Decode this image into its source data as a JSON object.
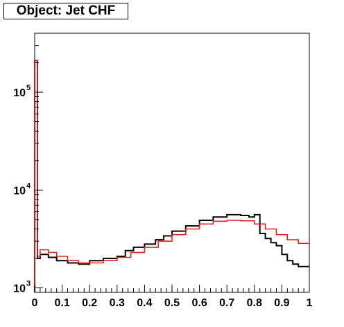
{
  "chart_data": {
    "type": "histogram",
    "title": "Object: Jet CHF",
    "xlabel": "",
    "ylabel": "",
    "xlim": [
      0,
      1
    ],
    "ylim": [
      900,
      400000
    ],
    "y_scale": "log",
    "grid": false,
    "legend": "none",
    "x_ticks": [
      {
        "value": 0,
        "label": "0"
      },
      {
        "value": 0.1,
        "label": "0.1"
      },
      {
        "value": 0.2,
        "label": "0.2"
      },
      {
        "value": 0.3,
        "label": "0.3"
      },
      {
        "value": 0.4,
        "label": "0.4"
      },
      {
        "value": 0.5,
        "label": "0.5"
      },
      {
        "value": 0.6,
        "label": "0.6"
      },
      {
        "value": 0.7,
        "label": "0.7"
      },
      {
        "value": 0.8,
        "label": "0.8"
      },
      {
        "value": 0.9,
        "label": "0.9"
      },
      {
        "value": 1,
        "label": "1"
      }
    ],
    "y_ticks": [
      {
        "value": 1000,
        "base": "10",
        "exp": "3"
      },
      {
        "value": 10000,
        "base": "10",
        "exp": "4"
      },
      {
        "value": 100000,
        "base": "10",
        "exp": "5"
      }
    ],
    "series": [
      {
        "color": "#000000",
        "bin_edges": [
          0,
          0.01,
          0.02,
          0.05,
          0.08,
          0.12,
          0.16,
          0.2,
          0.25,
          0.3,
          0.33,
          0.36,
          0.4,
          0.44,
          0.47,
          0.5,
          0.55,
          0.6,
          0.65,
          0.7,
          0.75,
          0.78,
          0.8,
          0.82,
          0.84,
          0.86,
          0.88,
          0.9,
          0.92,
          0.94,
          0.96,
          1.0
        ],
        "values": [
          210000,
          2000,
          2200,
          2050,
          1900,
          1800,
          1750,
          1900,
          2000,
          2100,
          2400,
          2600,
          2800,
          3100,
          3400,
          3800,
          4300,
          4900,
          5300,
          5600,
          5500,
          5300,
          5600,
          3600,
          3200,
          2900,
          2700,
          2200,
          1900,
          1750,
          1650
        ]
      },
      {
        "color": "#e8231c",
        "bin_edges": [
          0,
          0.01,
          0.02,
          0.05,
          0.08,
          0.12,
          0.16,
          0.2,
          0.25,
          0.3,
          0.35,
          0.4,
          0.45,
          0.5,
          0.55,
          0.6,
          0.65,
          0.7,
          0.75,
          0.8,
          0.84,
          0.88,
          0.92,
          0.96,
          1.0
        ],
        "values": [
          210000,
          2100,
          2450,
          2300,
          2100,
          1900,
          1800,
          1800,
          1900,
          2050,
          2300,
          2600,
          3000,
          3500,
          4000,
          4500,
          4800,
          4900,
          4850,
          4500,
          4000,
          3500,
          3100,
          2850
        ]
      }
    ]
  }
}
